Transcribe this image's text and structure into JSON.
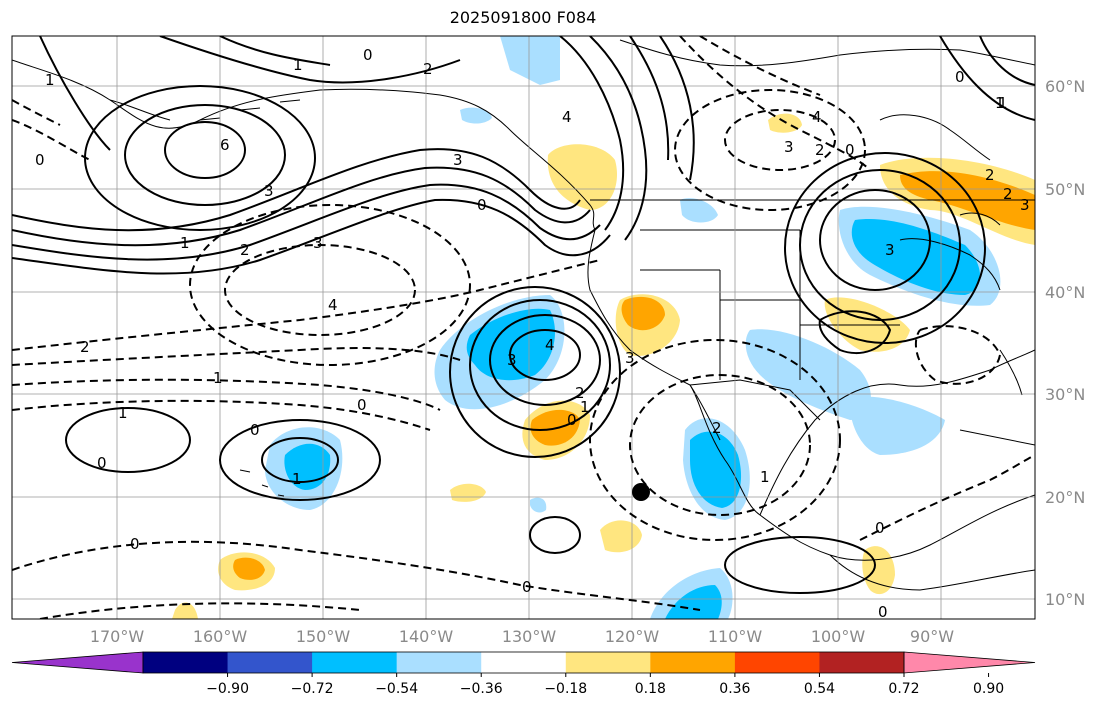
{
  "title": "2025091800 F084",
  "lat_labels": [
    "60°N",
    "50°N",
    "40°N",
    "30°N",
    "20°N",
    "10°N"
  ],
  "lon_labels": [
    "170°W",
    "160°W",
    "150°W",
    "140°W",
    "130°W",
    "120°W",
    "110°W",
    "100°W",
    "90°W"
  ],
  "colorbar": {
    "colors": [
      "#9933cc",
      "#000080",
      "#3355cc",
      "#00bfff",
      "#aadfff",
      "#ffffff",
      "#ffe680",
      "#ffa500",
      "#ff4500",
      "#b22222",
      "#ff88aa"
    ],
    "labels": [
      "−0.90",
      "−0.72",
      "−0.54",
      "−0.36",
      "−0.18",
      "0.18",
      "0.36",
      "0.54",
      "0.72",
      "0.90"
    ]
  },
  "contour_labels": [
    "0",
    "2",
    "1",
    "6",
    "3",
    "2",
    "1",
    "0",
    "1",
    "3",
    "0",
    "4",
    "4",
    "3",
    "2",
    "3",
    "2",
    "3",
    "0",
    "2",
    "3",
    "2",
    "1",
    "0",
    "4",
    "3",
    "2",
    "1",
    "0",
    "3",
    "4",
    "2",
    "1",
    "0",
    "0",
    "1",
    "0",
    "1",
    "1",
    "0",
    "0",
    "0",
    "0",
    "1"
  ]
}
